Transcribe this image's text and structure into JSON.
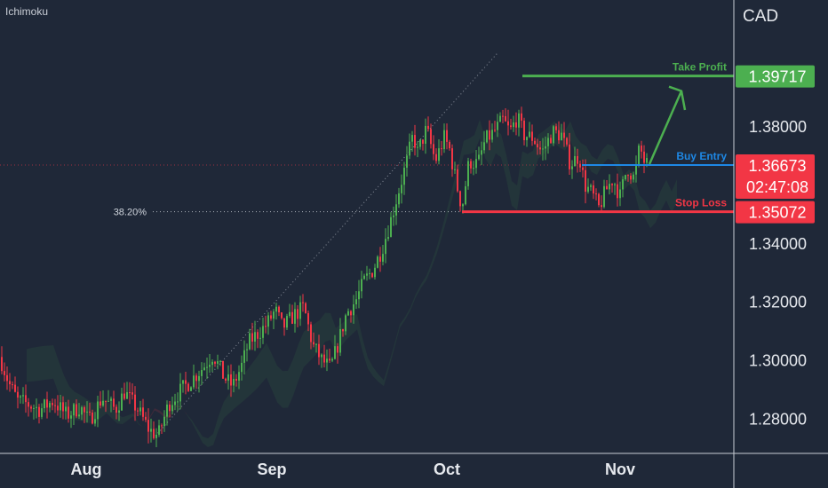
{
  "indicator_label": "Ichimoku",
  "chart_data": {
    "type": "candlestick",
    "currency_label": "CAD",
    "x_ticks": [
      "Aug",
      "Sep",
      "Oct",
      "Nov"
    ],
    "y_ticks": [
      "1.28000",
      "1.30000",
      "1.32000",
      "1.34000",
      "1.38000"
    ],
    "ylim": [
      1.268,
      1.418
    ],
    "price_tags": {
      "take_profit": "1.39717",
      "current": "1.36673",
      "countdown": "02:47:08",
      "stop_loss": "1.35072"
    },
    "levels": [
      {
        "label": "Take Profit",
        "value": 1.39717,
        "color": "#4caf50"
      },
      {
        "label": "Buy Entry",
        "value": 1.3667,
        "color": "#1e88e5"
      },
      {
        "label": "Stop Loss",
        "value": 1.35072,
        "color": "#f23645"
      }
    ],
    "fib_label": "38.20%",
    "fib_value": 1.3507,
    "colors": {
      "up": "#4caf50",
      "down": "#f23645",
      "background": "#1f2838"
    },
    "price_path": [
      [
        0,
        1.301
      ],
      [
        10,
        1.292
      ],
      [
        20,
        1.286
      ],
      [
        30,
        1.285
      ],
      [
        45,
        1.283
      ],
      [
        60,
        1.286
      ],
      [
        75,
        1.281
      ],
      [
        90,
        1.284
      ],
      [
        100,
        1.279
      ],
      [
        115,
        1.287
      ],
      [
        130,
        1.283
      ],
      [
        140,
        1.289
      ],
      [
        155,
        1.283
      ],
      [
        168,
        1.276
      ],
      [
        178,
        1.274
      ],
      [
        190,
        1.285
      ],
      [
        205,
        1.29
      ],
      [
        215,
        1.293
      ],
      [
        230,
        1.298
      ],
      [
        240,
        1.302
      ],
      [
        252,
        1.294
      ],
      [
        262,
        1.291
      ],
      [
        272,
        1.298
      ],
      [
        280,
        1.306
      ],
      [
        290,
        1.309
      ],
      [
        300,
        1.312
      ],
      [
        310,
        1.317
      ],
      [
        318,
        1.311
      ],
      [
        330,
        1.315
      ],
      [
        342,
        1.318
      ],
      [
        352,
        1.305
      ],
      [
        362,
        1.3
      ],
      [
        372,
        1.297
      ],
      [
        380,
        1.305
      ],
      [
        390,
        1.316
      ],
      [
        400,
        1.32
      ],
      [
        410,
        1.327
      ],
      [
        420,
        1.331
      ],
      [
        430,
        1.338
      ],
      [
        440,
        1.348
      ],
      [
        448,
        1.357
      ],
      [
        458,
        1.368
      ],
      [
        465,
        1.377
      ],
      [
        470,
        1.371
      ],
      [
        480,
        1.379
      ],
      [
        490,
        1.368
      ],
      [
        500,
        1.376
      ],
      [
        506,
        1.372
      ],
      [
        514,
        1.36
      ],
      [
        520,
        1.352
      ],
      [
        528,
        1.368
      ],
      [
        538,
        1.367
      ],
      [
        546,
        1.375
      ],
      [
        556,
        1.378
      ],
      [
        566,
        1.382
      ],
      [
        574,
        1.378
      ],
      [
        582,
        1.383
      ],
      [
        590,
        1.377
      ],
      [
        600,
        1.376
      ],
      [
        610,
        1.371
      ],
      [
        622,
        1.378
      ],
      [
        632,
        1.377
      ],
      [
        642,
        1.367
      ],
      [
        652,
        1.37
      ],
      [
        658,
        1.36
      ],
      [
        666,
        1.357
      ],
      [
        674,
        1.352
      ],
      [
        682,
        1.358
      ],
      [
        690,
        1.362
      ],
      [
        698,
        1.356
      ],
      [
        706,
        1.366
      ],
      [
        714,
        1.362
      ],
      [
        720,
        1.373
      ],
      [
        726,
        1.367
      ]
    ]
  }
}
